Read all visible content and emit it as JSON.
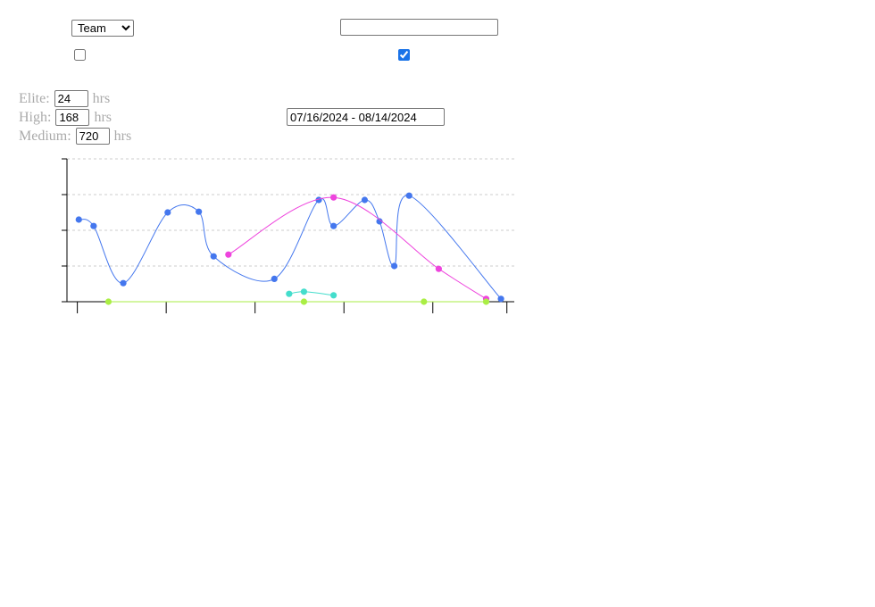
{
  "controls": {
    "group_by_selected": "Team",
    "text_filter_value": "",
    "checkbox_left_checked": false,
    "checkbox_right_checked": true,
    "date_range_value": "07/16/2024 - 08/14/2024"
  },
  "thresholds": {
    "elite_label": "Elite:",
    "elite_value": "24",
    "high_label": "High:",
    "high_value": "168",
    "medium_label": "Medium:",
    "medium_value": "720",
    "unit": "hrs"
  },
  "chart_data": {
    "type": "line",
    "title": "",
    "xlabel": "",
    "ylabel": "",
    "grid": true,
    "x_range": [
      0.3,
      30.5
    ],
    "x_ticks": [
      1,
      7,
      13,
      19,
      25,
      30
    ],
    "y_range": [
      0,
      4
    ],
    "y_ticks": [
      0,
      1,
      2,
      3,
      4
    ],
    "series": [
      {
        "color": "#4477ee",
        "points": [
          [
            1.1,
            2.3
          ],
          [
            2.1,
            2.12
          ],
          [
            4.1,
            0.52
          ],
          [
            7.1,
            2.5
          ],
          [
            9.2,
            2.52
          ],
          [
            10.2,
            1.27
          ],
          [
            14.3,
            0.64
          ],
          [
            17.3,
            2.85
          ],
          [
            18.3,
            2.12
          ],
          [
            20.4,
            2.85
          ],
          [
            21.4,
            2.25
          ],
          [
            22.4,
            1.0
          ],
          [
            23.4,
            2.97
          ],
          [
            29.6,
            0.08
          ]
        ]
      },
      {
        "color": "#ee44dd",
        "points": [
          [
            11.2,
            1.32
          ],
          [
            18.3,
            2.92
          ],
          [
            25.4,
            0.92
          ],
          [
            28.6,
            0.08
          ]
        ]
      },
      {
        "color": "#44ddcc",
        "points": [
          [
            15.3,
            0.22
          ],
          [
            16.3,
            0.28
          ],
          [
            18.3,
            0.18
          ]
        ]
      },
      {
        "color": "#aaee44",
        "points": [
          [
            3.1,
            0.0
          ],
          [
            16.3,
            0.0
          ],
          [
            24.4,
            0.0
          ],
          [
            28.6,
            0.0
          ]
        ]
      }
    ]
  }
}
